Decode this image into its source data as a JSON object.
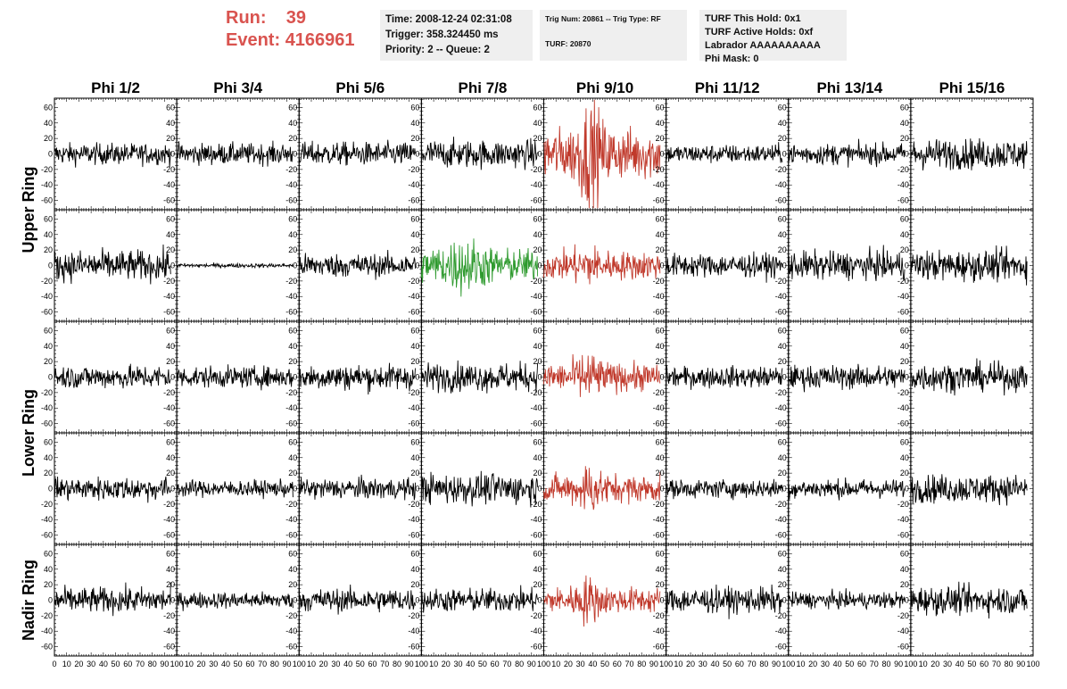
{
  "header": {
    "run_label": "Run:",
    "run_value": "39",
    "event_label": "Event:",
    "event_value": "4166961",
    "time_box": [
      "Time: 2008-12-24 02:31:08",
      "Trigger: 358.324450 ms",
      "Priority: 2 -- Queue: 2"
    ],
    "trig_box": [
      "Trig Num: 20861 -- Trig Type: RF",
      "TURF: 20870"
    ],
    "turf_box": [
      "TURF This Hold: 0x1",
      "TURF Active Holds: 0xf",
      "Labrador AAAAAAAAAA",
      "Phi Mask: 0"
    ]
  },
  "chart_data": {
    "type": "line",
    "columns": [
      "Phi 1/2",
      "Phi 3/4",
      "Phi 5/6",
      "Phi 7/8",
      "Phi 9/10",
      "Phi 11/12",
      "Phi 13/14",
      "Phi 15/16"
    ],
    "rows": [
      "Upper Ring",
      "Lower Ring",
      "Nadir Ring"
    ],
    "row_label_spans": [
      2,
      2,
      1
    ],
    "panel_rows": 5,
    "xlim": [
      0,
      100
    ],
    "ylim": [
      -72,
      72
    ],
    "x_tick_labels": [
      "0",
      "10",
      "20",
      "30",
      "40",
      "50",
      "60",
      "70",
      "80",
      "90",
      "100"
    ],
    "y_tick_labels": [
      "-60",
      "-40",
      "-20",
      "0",
      "20",
      "40",
      "60"
    ],
    "trace_start_x": 0,
    "trace_end_x": 95,
    "colors": {
      "normal": "#000000",
      "triggered": "#c0392b",
      "highlight": "#2e9a2e"
    },
    "panels": [
      [
        {
          "amp": 9,
          "color": "normal"
        },
        {
          "amp": 9,
          "color": "normal"
        },
        {
          "amp": 10,
          "color": "normal"
        },
        {
          "amp": 12,
          "color": "normal"
        },
        {
          "amp": 22,
          "color": "triggered",
          "burst": [
            38,
            10,
            2.2
          ]
        },
        {
          "amp": 8,
          "color": "normal"
        },
        {
          "amp": 9,
          "color": "normal"
        },
        {
          "amp": 13,
          "color": "normal"
        }
      ],
      [
        {
          "amp": 13,
          "color": "normal"
        },
        {
          "amp": 1.8,
          "color": "normal"
        },
        {
          "amp": 10,
          "color": "normal"
        },
        {
          "amp": 14,
          "color": "highlight",
          "burst": [
            35,
            18,
            1.8
          ]
        },
        {
          "amp": 12,
          "color": "triggered",
          "burst": [
            35,
            12,
            1.6
          ]
        },
        {
          "amp": 10,
          "color": "normal"
        },
        {
          "amp": 12,
          "color": "normal"
        },
        {
          "amp": 13,
          "color": "normal"
        }
      ],
      [
        {
          "amp": 10,
          "color": "normal"
        },
        {
          "amp": 9,
          "color": "normal"
        },
        {
          "amp": 11,
          "color": "normal"
        },
        {
          "amp": 12,
          "color": "normal"
        },
        {
          "amp": 12,
          "color": "triggered",
          "burst": [
            36,
            10,
            2.0
          ]
        },
        {
          "amp": 9,
          "color": "normal"
        },
        {
          "amp": 10,
          "color": "normal"
        },
        {
          "amp": 12,
          "color": "normal"
        }
      ],
      [
        {
          "amp": 10,
          "color": "normal"
        },
        {
          "amp": 7,
          "color": "normal"
        },
        {
          "amp": 9,
          "color": "normal"
        },
        {
          "amp": 13,
          "color": "normal"
        },
        {
          "amp": 12,
          "color": "triggered",
          "burst": [
            37,
            10,
            2.0
          ]
        },
        {
          "amp": 8,
          "color": "normal"
        },
        {
          "amp": 8,
          "color": "normal"
        },
        {
          "amp": 12,
          "color": "normal"
        }
      ],
      [
        {
          "amp": 11,
          "color": "normal"
        },
        {
          "amp": 7,
          "color": "normal"
        },
        {
          "amp": 10,
          "color": "normal"
        },
        {
          "amp": 10,
          "color": "normal"
        },
        {
          "amp": 11,
          "color": "triggered",
          "burst": [
            36,
            10,
            2.0
          ]
        },
        {
          "amp": 11,
          "color": "normal"
        },
        {
          "amp": 7,
          "color": "normal"
        },
        {
          "amp": 12,
          "color": "normal"
        }
      ]
    ]
  }
}
